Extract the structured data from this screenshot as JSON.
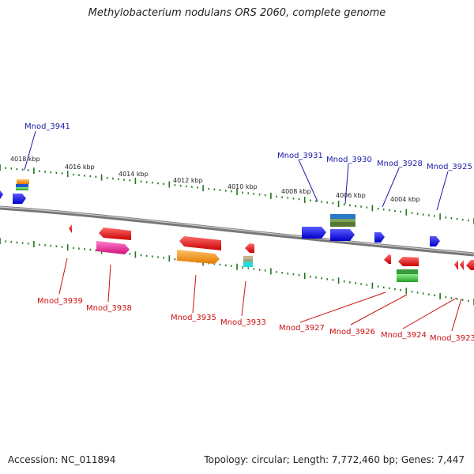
{
  "title": "Methylobacterium nodulans ORS 2060, complete genome",
  "footer": {
    "accession": "Accession: NC_011894",
    "stats": "Topology: circular; Length: 7,772,460 bp; Genes: 7,447"
  },
  "ruler": {
    "ticks": [
      "4018 kbp",
      "4016 kbp",
      "4014 kbp",
      "4012 kbp",
      "4010 kbp",
      "4008 kbp",
      "4006 kbp",
      "4004 kbp"
    ]
  },
  "genes_top": [
    {
      "label": "Mnod_3941"
    },
    {
      "label": "Mnod_3931"
    },
    {
      "label": "Mnod_3930"
    },
    {
      "label": "Mnod_3928"
    },
    {
      "label": "Mnod_3925"
    }
  ],
  "genes_bottom": [
    {
      "label": "Mnod_3939"
    },
    {
      "label": "Mnod_3938"
    },
    {
      "label": "Mnod_3935"
    },
    {
      "label": "Mnod_3933"
    },
    {
      "label": "Mnod_3927"
    },
    {
      "label": "Mnod_3926"
    },
    {
      "label": "Mnod_3924"
    },
    {
      "label": "Mnod_3923"
    }
  ],
  "colors": {
    "forward_cds": "#1010ee",
    "reverse_cds": "#ee1111",
    "top_label": "#1a1aa8",
    "bottom_label": "#cc1111",
    "backbone": "#888888",
    "tick": "#227722"
  }
}
